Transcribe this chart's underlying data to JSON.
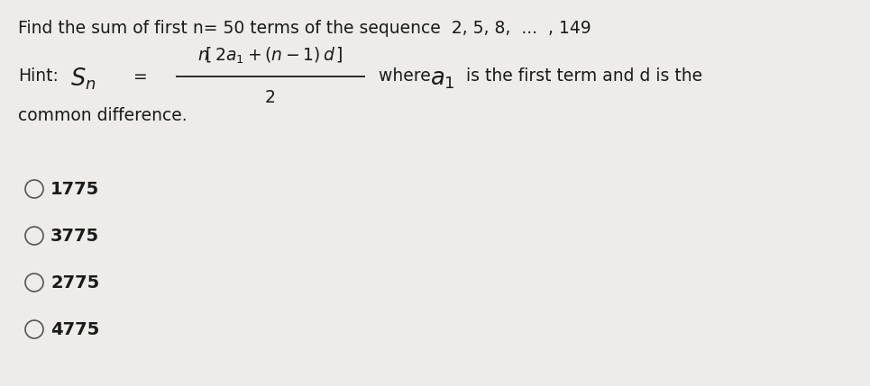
{
  "bg_color": "#edecea",
  "text_color": "#1a1a1a",
  "title": "Find the sum of first n= 50 terms of the sequence  2, 5, 8,  ...  , 149",
  "title_fs": 13.5,
  "hint_fs": 13.5,
  "choice_fs": 14.0,
  "choices": [
    "1775",
    "3775",
    "2775",
    "4775"
  ],
  "fig_width": 9.65,
  "fig_height": 4.29,
  "dpi": 100
}
